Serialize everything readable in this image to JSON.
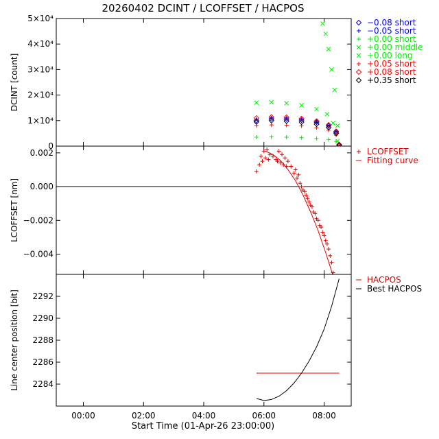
{
  "title": "20260402 DCINT / LCOFFSET / HACPOS",
  "x_axis": {
    "label": "Start Time (01-Apr-26 23:00:00)",
    "tick_labels": [
      "00:00",
      "02:00",
      "04:00",
      "06:00",
      "08:00"
    ],
    "tick_hours": [
      0,
      2,
      4,
      6,
      8
    ],
    "range_hours": [
      -0.9,
      8.9
    ]
  },
  "chart_data": [
    {
      "type": "scatter",
      "ylabel": "DCINT [count]",
      "ylim": [
        0,
        50000
      ],
      "y_tick_labels": [
        "0",
        "1×10⁴",
        "2×10⁴",
        "3×10⁴",
        "4×10⁴",
        "5×10⁴"
      ],
      "y_ticks": [
        0,
        10000,
        20000,
        30000,
        40000,
        50000
      ],
      "legend_position": "right",
      "series": [
        {
          "name": "−0.08 short",
          "marker": "diamond",
          "color": "#0000ff",
          "x": [
            5.75,
            6.25,
            6.75,
            7.25,
            7.75,
            8.15,
            8.4,
            8.5
          ],
          "y": [
            10000,
            10700,
            10600,
            10200,
            9400,
            8000,
            5500,
            500
          ]
        },
        {
          "name": "−0.05 short",
          "marker": "plus",
          "color": "#0000ff",
          "x": [
            5.75,
            6.25,
            6.75,
            7.25,
            7.75,
            8.15,
            8.4,
            8.5
          ],
          "y": [
            10500,
            11000,
            10900,
            10500,
            9600,
            8200,
            5700,
            500
          ]
        },
        {
          "name": "+0.00 short",
          "marker": "plus",
          "color": "#00ee00",
          "x": [
            5.75,
            6.25,
            6.75,
            7.25,
            7.75,
            8.15,
            8.4,
            8.5
          ],
          "y": [
            3500,
            3600,
            3500,
            3300,
            3000,
            2600,
            1800,
            300
          ]
        },
        {
          "name": "+0.00 middle",
          "marker": "cross",
          "color": "#00ee00",
          "x": [
            5.75,
            6.25,
            6.75,
            7.25,
            7.75,
            8.1,
            8.3,
            8.45
          ],
          "y": [
            17000,
            17200,
            16800,
            16000,
            14500,
            12500,
            9000,
            2000
          ]
        },
        {
          "name": "+0.00 long",
          "marker": "cross",
          "color": "#00ee00",
          "x": [
            7.95,
            8.05,
            8.15,
            8.25,
            8.35,
            8.45
          ],
          "y": [
            48000,
            44000,
            38000,
            30000,
            22000,
            8000
          ]
        },
        {
          "name": "+0.05 short",
          "marker": "plus",
          "color": "#ff0000",
          "x": [
            5.75,
            6.25,
            6.75,
            7.25,
            7.75,
            8.15,
            8.4,
            8.5
          ],
          "y": [
            8000,
            8300,
            8200,
            7900,
            7200,
            6200,
            4300,
            400
          ]
        },
        {
          "name": "+0.08 short",
          "marker": "diamond",
          "color": "#ff0000",
          "x": [
            5.75,
            6.25,
            6.75,
            7.25,
            7.75,
            8.15,
            8.4,
            8.5
          ],
          "y": [
            11000,
            11400,
            11300,
            10800,
            9800,
            8300,
            5800,
            600
          ]
        },
        {
          "name": "+0.35 short",
          "marker": "diamond",
          "color": "#000000",
          "x": [
            5.75,
            6.25,
            6.75,
            7.25,
            7.75,
            8.15,
            8.4,
            8.5
          ],
          "y": [
            9500,
            10000,
            9800,
            9400,
            8600,
            7300,
            5000,
            400
          ]
        }
      ]
    },
    {
      "type": "scatter",
      "ylabel": "LCOFFSET [nm]",
      "ylim": [
        -0.0052,
        0.0024
      ],
      "y_tick_labels": [
        "−0.004",
        "−0.002",
        "0.000",
        "0.002"
      ],
      "y_ticks": [
        -0.004,
        -0.002,
        0.0,
        0.002
      ],
      "reference_line_y": 0.0,
      "legend_position": "right",
      "series": [
        {
          "name": "LCOFFSET",
          "marker": "plus",
          "color": "#dd0000",
          "x": [
            5.75,
            5.85,
            5.9,
            5.95,
            6.0,
            6.05,
            6.1,
            6.15,
            6.2,
            6.3,
            6.4,
            6.45,
            6.5,
            6.55,
            6.6,
            6.65,
            6.7,
            6.75,
            6.8,
            6.9,
            7.0,
            7.05,
            7.1,
            7.15,
            7.2,
            7.25,
            7.3,
            7.35,
            7.4,
            7.45,
            7.5,
            7.55,
            7.6,
            7.65,
            7.7,
            7.75,
            7.8,
            7.85,
            7.9,
            7.95,
            8.0,
            8.05,
            8.1,
            8.15,
            8.2,
            8.25,
            8.3
          ],
          "y": [
            0.0009,
            0.0013,
            0.0018,
            0.0015,
            0.0021,
            0.0017,
            0.0022,
            0.0016,
            0.0019,
            0.0018,
            0.0016,
            0.0015,
            0.0021,
            0.0014,
            0.0019,
            0.0013,
            0.0017,
            0.0012,
            0.0015,
            0.0012,
            0.0008,
            0.001,
            0.0005,
            0.0007,
            0.0002,
            0.0,
            -0.0002,
            -0.0003,
            -0.0005,
            -0.0007,
            -0.0009,
            -0.0011,
            -0.0012,
            -0.0015,
            -0.0016,
            -0.0019,
            -0.002,
            -0.0023,
            -0.0024,
            -0.0027,
            -0.0029,
            -0.0032,
            -0.0034,
            -0.0037,
            -0.0041,
            -0.0045,
            -0.0051
          ]
        },
        {
          "name": "Fitting curve",
          "line": true,
          "color": "#dd0000",
          "x": [
            6.05,
            6.3,
            6.55,
            6.8,
            7.05,
            7.3,
            7.55,
            7.8,
            8.05,
            8.3
          ],
          "y": [
            0.0021,
            0.0019,
            0.00155,
            0.001,
            0.00035,
            -0.0005,
            -0.0015,
            -0.0026,
            -0.0039,
            -0.0053
          ]
        }
      ]
    },
    {
      "type": "line",
      "ylabel": "Line center position [bit]",
      "ylim": [
        2282,
        2294
      ],
      "y_tick_labels": [
        "2284",
        "2286",
        "2288",
        "2290",
        "2292"
      ],
      "y_ticks": [
        2284,
        2286,
        2288,
        2290,
        2292
      ],
      "legend_position": "right",
      "series": [
        {
          "name": "HACPOS",
          "color": "#dd0000",
          "x": [
            5.75,
            8.5
          ],
          "y": [
            2285.0,
            2285.0
          ]
        },
        {
          "name": "Best HACPOS",
          "color": "#000000",
          "x": [
            5.75,
            6.0,
            6.25,
            6.5,
            6.75,
            7.0,
            7.25,
            7.5,
            7.75,
            8.0,
            8.25,
            8.5
          ],
          "y": [
            2282.7,
            2282.5,
            2282.6,
            2282.9,
            2283.4,
            2284.1,
            2285.0,
            2286.1,
            2287.4,
            2289.0,
            2291.1,
            2293.6
          ]
        }
      ]
    }
  ]
}
